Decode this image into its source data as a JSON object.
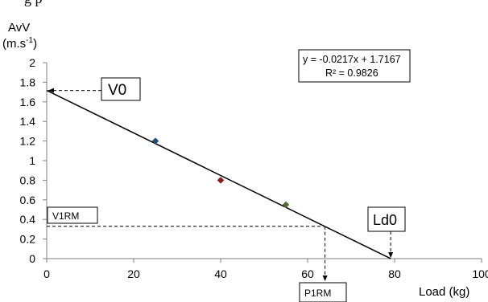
{
  "caption_fragment": "g                                                           p",
  "chart_data": {
    "type": "scatter",
    "ylabel_line1": "AvV",
    "ylabel_line2_base": "(m.s",
    "ylabel_line2_sup": "-1",
    "ylabel_line2_end": ")",
    "xlabel": "Load (kg)",
    "xlim": [
      0,
      100
    ],
    "ylim": [
      0,
      2
    ],
    "x_ticks": [
      0,
      20,
      40,
      60,
      80,
      100
    ],
    "y_ticks": [
      0,
      0.2,
      0.4,
      0.6,
      0.8,
      1,
      1.2,
      1.4,
      1.6,
      1.8,
      2
    ],
    "x_tick_labels": [
      "0",
      "20",
      "40",
      "60",
      "80",
      "100"
    ],
    "y_tick_labels": [
      "0",
      "0.2",
      "0.4",
      "0.6",
      "0.8",
      "1",
      "1.2",
      "1.4",
      "1.6",
      "1.8",
      "2"
    ],
    "grid": false,
    "series": [
      {
        "points": [
          {
            "x": 25,
            "y": 1.2,
            "color": "#1f4e79"
          },
          {
            "x": 40,
            "y": 0.8,
            "color": "#8b1a1a"
          },
          {
            "x": 55,
            "y": 0.55,
            "color": "#556b2f"
          }
        ]
      }
    ],
    "trendline": {
      "equation": "y = -0.0217x + 1.7167",
      "r2": "R² = 0.9826",
      "slope": -0.0217,
      "intercept": 1.7167,
      "x_end": 79.1
    },
    "annotations": {
      "v0": {
        "label": "V0",
        "x": 0,
        "y": 1.7167
      },
      "ld0": {
        "label": "Ld0",
        "x": 79.1,
        "y": 0
      },
      "v1rm": {
        "label": "V1RM",
        "y": 0.33
      },
      "p1rm": {
        "label": "P1RM",
        "x": 64
      }
    }
  }
}
